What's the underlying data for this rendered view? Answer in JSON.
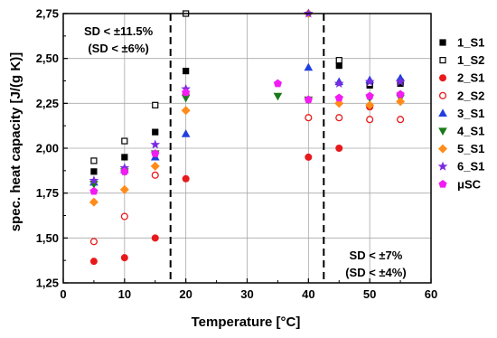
{
  "chart_data": {
    "type": "scatter",
    "xlabel": "Temperature [°C]",
    "ylabel": "spec. heat capacity [J/(g K)]",
    "xlim": [
      0,
      60
    ],
    "ylim": [
      1.25,
      2.75
    ],
    "x_ticks": [
      "0",
      "10",
      "20",
      "30",
      "40",
      "50",
      "60"
    ],
    "y_ticks": [
      "1,25",
      "1,50",
      "1,75",
      "2,00",
      "2,25",
      "2,50",
      "2,75"
    ],
    "grid": true,
    "legend_position": "right",
    "series": [
      {
        "name": "1_S1",
        "marker": "square-filled",
        "color": "#000000",
        "x": [
          5,
          10,
          15,
          20,
          45,
          50,
          55
        ],
        "y": [
          1.87,
          1.95,
          2.09,
          2.43,
          2.46,
          2.35,
          2.36
        ]
      },
      {
        "name": "1_S2",
        "marker": "square-open",
        "color": "#000000",
        "x": [
          5,
          10,
          15,
          20,
          45,
          50,
          55
        ],
        "y": [
          1.93,
          2.04,
          2.24,
          2.75,
          2.49,
          2.36,
          2.37
        ]
      },
      {
        "name": "2_S1",
        "marker": "circle-filled",
        "color": "#e8191b",
        "x": [
          5,
          10,
          15,
          20,
          40,
          45,
          50
        ],
        "y": [
          1.37,
          1.39,
          1.5,
          1.83,
          1.95,
          2.0,
          2.23
        ]
      },
      {
        "name": "2_S2",
        "marker": "circle-open",
        "color": "#e8191b",
        "x": [
          5,
          10,
          15,
          20,
          40,
          45,
          50,
          55
        ],
        "y": [
          1.48,
          1.62,
          1.85,
          2.3,
          2.17,
          2.17,
          2.16,
          2.16
        ]
      },
      {
        "name": "3_S1",
        "marker": "triangle-up",
        "color": "#1f3fe0",
        "x": [
          5,
          10,
          15,
          20,
          40,
          45,
          50,
          55
        ],
        "y": [
          1.81,
          1.88,
          1.95,
          2.08,
          2.45,
          2.37,
          2.38,
          2.39
        ]
      },
      {
        "name": "4_S1",
        "marker": "triangle-down",
        "color": "#1a7a1a",
        "x": [
          5,
          10,
          15,
          20,
          35,
          40,
          45,
          50,
          55
        ],
        "y": [
          1.8,
          1.87,
          1.97,
          2.28,
          2.29,
          2.27,
          2.27,
          2.28,
          2.28
        ]
      },
      {
        "name": "5_S1",
        "marker": "diamond",
        "color": "#ff8c1a",
        "x": [
          5,
          10,
          15,
          20,
          40,
          45,
          50,
          55
        ],
        "y": [
          1.7,
          1.77,
          1.9,
          2.21,
          2.77,
          2.25,
          2.24,
          2.26
        ]
      },
      {
        "name": "6_S1",
        "marker": "star",
        "color": "#7a2be0",
        "x": [
          5,
          10,
          15,
          20,
          40,
          45,
          50,
          55
        ],
        "y": [
          1.82,
          1.89,
          2.02,
          2.33,
          2.8,
          2.36,
          2.37,
          2.37
        ]
      },
      {
        "name": "μSC",
        "marker": "pentagon",
        "color": "#f21bf2",
        "x": [
          5,
          10,
          15,
          20,
          35,
          40,
          45,
          50,
          55
        ],
        "y": [
          1.76,
          1.87,
          1.97,
          2.31,
          2.36,
          2.27,
          2.28,
          2.29,
          2.3
        ]
      }
    ],
    "vlines": [
      17.5,
      42.5
    ],
    "annotations": [
      {
        "lines": [
          "SD < ±11.5%",
          "(SD < ±6%)"
        ],
        "anchor_x": 9,
        "anchor_y": 2.63
      },
      {
        "lines": [
          "SD < ±7%",
          "(SD < ±4%)"
        ],
        "anchor_x": 51,
        "anchor_y": 1.38
      }
    ]
  }
}
